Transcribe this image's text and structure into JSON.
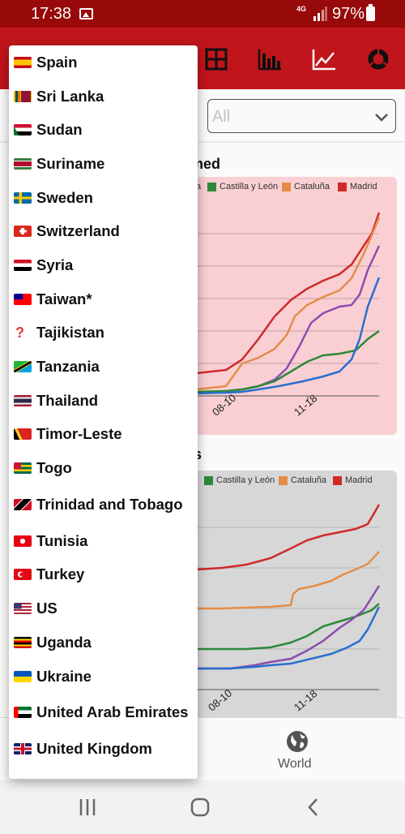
{
  "status_bar": {
    "time": "17:38",
    "network": "4G",
    "battery_text": "97%"
  },
  "toolbar": {
    "icons": [
      "table-icon",
      "bar-chart-icon",
      "line-chart-icon",
      "donut-chart-icon"
    ],
    "color": "#c4161c"
  },
  "filter": {
    "selected": "All"
  },
  "charts": [
    {
      "title_fragment": "rmed",
      "background": "#ffd4d8",
      "legend": [
        {
          "name": "a",
          "color": "#8e4fb4"
        },
        {
          "name": "Castilla y León",
          "color": "#2e8b3c"
        },
        {
          "name": "Cataluña",
          "color": "#e8904a"
        },
        {
          "name": "Madrid",
          "color": "#d42a2a"
        }
      ],
      "x_ticks": [
        "08-10",
        "11-18"
      ]
    },
    {
      "title_fragment": "ns",
      "background": "#dcdcdc",
      "legend": [
        {
          "name": "Castilla y León",
          "color": "#2e8b3c"
        },
        {
          "name": "Cataluña",
          "color": "#e8904a"
        },
        {
          "name": "Madrid",
          "color": "#d42a2a"
        }
      ],
      "x_ticks": [
        "08-10",
        "11-18"
      ]
    }
  ],
  "bottom_nav": {
    "world_label": "World"
  },
  "dropdown": {
    "items": [
      {
        "label": "Spain",
        "flag": "es"
      },
      {
        "label": "Sri Lanka",
        "flag": "lk"
      },
      {
        "label": "Sudan",
        "flag": "sd"
      },
      {
        "label": "Suriname",
        "flag": "sr"
      },
      {
        "label": "Sweden",
        "flag": "se"
      },
      {
        "label": "Switzerland",
        "flag": "ch"
      },
      {
        "label": "Syria",
        "flag": "sy"
      },
      {
        "label": "Taiwan*",
        "flag": "tw"
      },
      {
        "label": "Tajikistan",
        "flag": "unknown"
      },
      {
        "label": "Tanzania",
        "flag": "tz"
      },
      {
        "label": "Thailand",
        "flag": "th"
      },
      {
        "label": "Timor-Leste",
        "flag": "tl"
      },
      {
        "label": "Togo",
        "flag": "tg"
      },
      {
        "label": "Trinidad and Tobago",
        "flag": "tt"
      },
      {
        "label": "Tunisia",
        "flag": "tn"
      },
      {
        "label": "Turkey",
        "flag": "tr"
      },
      {
        "label": "US",
        "flag": "us"
      },
      {
        "label": "Uganda",
        "flag": "ug"
      },
      {
        "label": "Ukraine",
        "flag": "ua"
      },
      {
        "label": "United Arab Emirates",
        "flag": "ae"
      },
      {
        "label": "United Kingdom",
        "flag": "gb"
      }
    ]
  }
}
